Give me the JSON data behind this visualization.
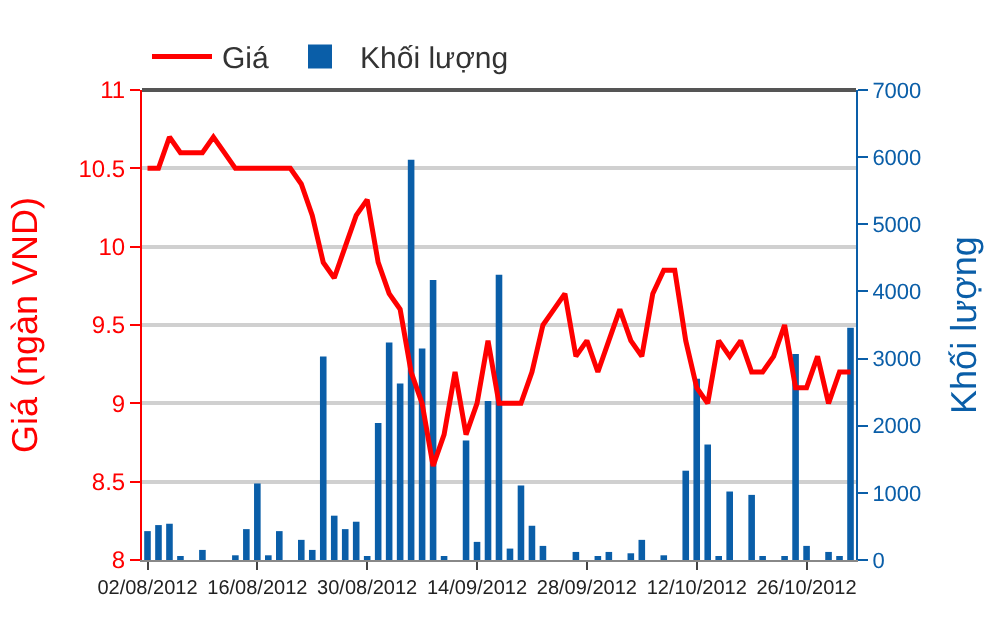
{
  "chart_data": {
    "type": "bar",
    "ylabel": "Giá (ngàn VND)",
    "y2label": "Khối lượng",
    "categories": [
      "02/08/2012",
      null,
      null,
      null,
      null,
      null,
      null,
      null,
      null,
      null,
      "16/08/2012",
      null,
      null,
      null,
      null,
      null,
      null,
      null,
      null,
      null,
      "30/08/2012",
      null,
      null,
      null,
      null,
      null,
      null,
      null,
      null,
      null,
      "14/09/2012",
      null,
      null,
      null,
      null,
      null,
      null,
      null,
      null,
      null,
      "28/09/2012",
      null,
      null,
      null,
      null,
      null,
      null,
      null,
      null,
      null,
      "12/10/2012",
      null,
      null,
      null,
      null,
      null,
      null,
      null,
      null,
      null,
      "26/10/2012",
      null,
      null,
      null,
      null
    ],
    "series": [
      {
        "name": "Giá",
        "type": "line",
        "color": "#ff0000",
        "axis": "y",
        "marker": "none",
        "line_style": "solid",
        "values": [
          10.5,
          10.5,
          10.7,
          10.6,
          10.6,
          10.6,
          10.7,
          10.6,
          10.5,
          10.5,
          10.5,
          10.5,
          10.5,
          10.5,
          10.4,
          10.2,
          9.9,
          9.8,
          10.0,
          10.2,
          10.3,
          9.9,
          9.7,
          9.6,
          9.2,
          9.0,
          8.6,
          8.8,
          9.2,
          8.8,
          9.0,
          9.4,
          9.0,
          9.0,
          9.0,
          9.2,
          9.5,
          9.6,
          9.7,
          9.3,
          9.4,
          9.2,
          9.4,
          9.6,
          9.4,
          9.3,
          9.7,
          9.85,
          9.85,
          9.4,
          9.1,
          9.0,
          9.4,
          9.3,
          9.4,
          9.2,
          9.2,
          9.3,
          9.5,
          9.1,
          9.1,
          9.3,
          9.0,
          9.2,
          9.2
        ]
      },
      {
        "name": "Khối lượng",
        "color": "#0a5ea8",
        "axis": "y2",
        "values": [
          430,
          520,
          540,
          40,
          0,
          150,
          0,
          0,
          70,
          460,
          1140,
          70,
          430,
          0,
          300,
          150,
          3030,
          660,
          460,
          570,
          40,
          2040,
          3240,
          2630,
          5960,
          3150,
          4170,
          40,
          0,
          1780,
          270,
          2370,
          4250,
          170,
          1110,
          510,
          210,
          0,
          0,
          120,
          0,
          60,
          120,
          0,
          100,
          300,
          0,
          70,
          0,
          1330,
          2700,
          1720,
          40,
          1020,
          0,
          970,
          40,
          0,
          40,
          3070,
          210,
          0,
          120,
          40,
          3460
        ]
      }
    ],
    "ylim": [
      8,
      11
    ],
    "yticks": [
      8,
      8.5,
      9,
      9.5,
      10,
      10.5,
      11
    ],
    "y2lim": [
      0,
      7000
    ],
    "y2ticks": [
      0,
      1000,
      2000,
      3000,
      4000,
      5000,
      6000,
      7000
    ],
    "grid": "y",
    "legend": "top left"
  }
}
